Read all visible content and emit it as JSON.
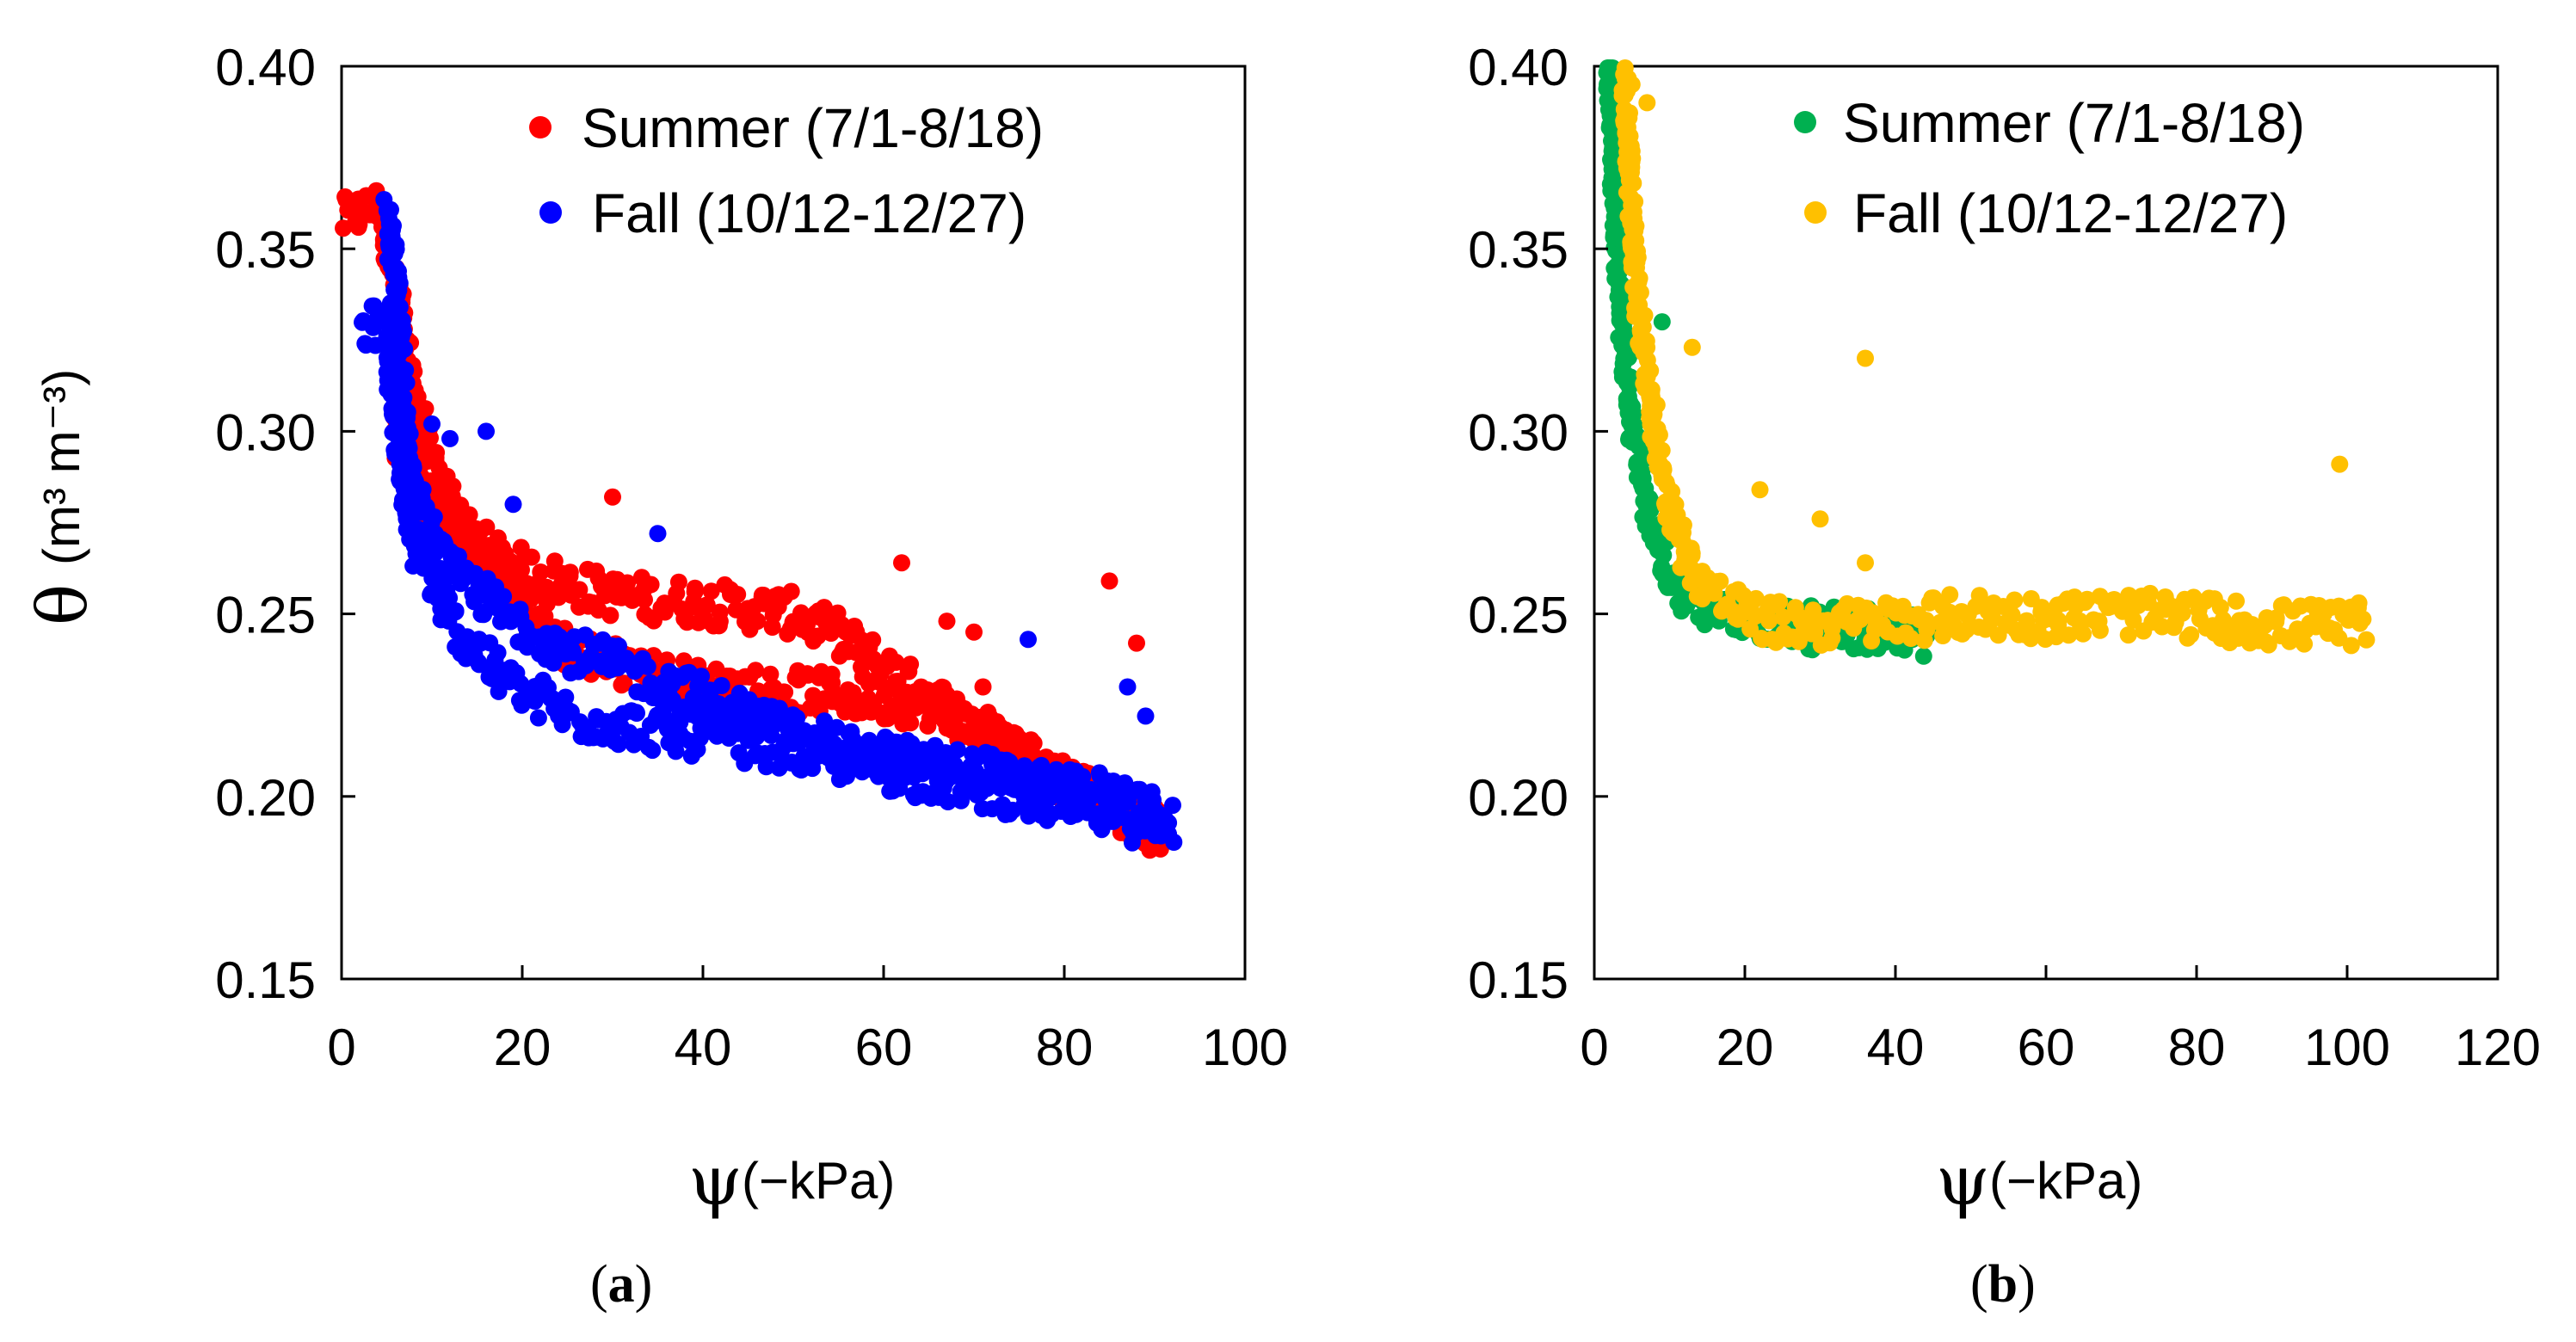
{
  "chart_data": [
    {
      "type": "scatter",
      "panel_label": "a",
      "ylabel_symbol": "θ",
      "ylabel_units": "(m³ m⁻³)",
      "xlabel_symbol": "ψ",
      "xlabel_units": "(−kPa)",
      "xlim": [
        0,
        100
      ],
      "ylim": [
        0.15,
        0.4
      ],
      "xticks": [
        "0",
        "20",
        "40",
        "60",
        "80",
        "100"
      ],
      "yticks": [
        "0.40",
        "0.35",
        "0.30",
        "0.25",
        "0.20",
        "0.15"
      ],
      "legend_position": "top-right",
      "series": [
        {
          "name": "Summer (7/1-8/18)",
          "color": "#ff0000",
          "curves": [
            [
              [
                0,
                0.358
              ],
              [
                4,
                0.362
              ],
              [
                6,
                0.34
              ],
              [
                8,
                0.31
              ],
              [
                10,
                0.29
              ],
              [
                14,
                0.272
              ],
              [
                20,
                0.262
              ],
              [
                30,
                0.255
              ],
              [
                40,
                0.253
              ],
              [
                50,
                0.25
              ],
              [
                55,
                0.244
              ],
              [
                60,
                0.235
              ],
              [
                70,
                0.22
              ],
              [
                80,
                0.205
              ],
              [
                90,
                0.19
              ]
            ],
            [
              [
                6,
                0.3
              ],
              [
                10,
                0.28
              ],
              [
                16,
                0.265
              ],
              [
                25,
                0.24
              ],
              [
                40,
                0.23
              ],
              [
                55,
                0.228
              ],
              [
                65,
                0.225
              ],
              [
                75,
                0.212
              ],
              [
                85,
                0.198
              ],
              [
                92,
                0.188
              ]
            ]
          ],
          "outliers": [
            [
              30,
              0.282
            ],
            [
              62,
              0.264
            ],
            [
              67,
              0.248
            ],
            [
              70,
              0.245
            ],
            [
              85,
              0.259
            ],
            [
              88,
              0.242
            ],
            [
              71,
              0.23
            ]
          ]
        },
        {
          "name": "Fall (10/12-12/27)",
          "color": "#0000ff",
          "curves": [
            [
              [
                2,
                0.328
              ],
              [
                5,
                0.33
              ],
              [
                6,
                0.3
              ],
              [
                8,
                0.27
              ],
              [
                12,
                0.248
              ],
              [
                18,
                0.232
              ],
              [
                25,
                0.222
              ],
              [
                35,
                0.218
              ],
              [
                45,
                0.215
              ],
              [
                55,
                0.21
              ],
              [
                65,
                0.205
              ],
              [
                75,
                0.2
              ],
              [
                85,
                0.195
              ],
              [
                92,
                0.19
              ]
            ],
            [
              [
                5,
                0.362
              ],
              [
                6,
                0.34
              ],
              [
                7,
                0.3
              ],
              [
                9,
                0.275
              ],
              [
                12,
                0.262
              ],
              [
                18,
                0.25
              ],
              [
                25,
                0.24
              ],
              [
                35,
                0.232
              ],
              [
                45,
                0.222
              ],
              [
                55,
                0.213
              ],
              [
                70,
                0.207
              ],
              [
                85,
                0.2
              ],
              [
                92,
                0.195
              ]
            ]
          ],
          "outliers": [
            [
              10,
              0.302
            ],
            [
              12,
              0.298
            ],
            [
              16,
              0.3
            ],
            [
              19,
              0.28
            ],
            [
              35,
              0.272
            ],
            [
              76,
              0.243
            ],
            [
              87,
              0.23
            ],
            [
              89,
              0.222
            ]
          ]
        }
      ]
    },
    {
      "type": "scatter",
      "panel_label": "b",
      "xlabel_symbol": "ψ",
      "xlabel_units": "(−kPa)",
      "xlim": [
        0,
        120
      ],
      "ylim": [
        0.15,
        0.4
      ],
      "xticks": [
        "0",
        "20",
        "40",
        "60",
        "80",
        "100",
        "120"
      ],
      "yticks": [
        "0.40",
        "0.35",
        "0.30",
        "0.25",
        "0.20",
        "0.15"
      ],
      "legend_position": "top-right",
      "series": [
        {
          "name": "Summer (7/1-8/18)",
          "color": "#00b050",
          "curves": [
            [
              [
                2,
                0.4
              ],
              [
                3,
                0.35
              ],
              [
                4,
                0.32
              ],
              [
                5,
                0.3
              ],
              [
                7,
                0.28
              ],
              [
                9,
                0.265
              ],
              [
                12,
                0.255
              ],
              [
                16,
                0.25
              ],
              [
                22,
                0.248
              ],
              [
                30,
                0.246
              ],
              [
                38,
                0.246
              ],
              [
                45,
                0.243
              ]
            ]
          ],
          "outliers": [
            [
              9,
              0.33
            ]
          ]
        },
        {
          "name": "Fall (10/12-12/27)",
          "color": "#ffc000",
          "curves": [
            [
              [
                4,
                0.398
              ],
              [
                5,
                0.36
              ],
              [
                6,
                0.33
              ],
              [
                8,
                0.3
              ],
              [
                10,
                0.28
              ],
              [
                13,
                0.262
              ],
              [
                17,
                0.254
              ],
              [
                22,
                0.248
              ],
              [
                30,
                0.247
              ],
              [
                40,
                0.248
              ],
              [
                50,
                0.25
              ],
              [
                60,
                0.249
              ],
              [
                70,
                0.25
              ],
              [
                80,
                0.249
              ],
              [
                90,
                0.247
              ],
              [
                103,
                0.247
              ]
            ]
          ],
          "outliers": [
            [
              36,
              0.32
            ],
            [
              13,
              0.323
            ],
            [
              22,
              0.284
            ],
            [
              30,
              0.276
            ],
            [
              36,
              0.264
            ],
            [
              99,
              0.291
            ],
            [
              5,
              0.395
            ],
            [
              7,
              0.39
            ]
          ]
        }
      ]
    }
  ]
}
